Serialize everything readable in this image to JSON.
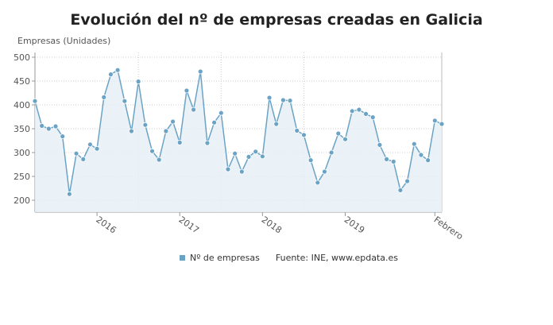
{
  "title": "Evolución del nº de empresas creadas en Galicia",
  "legend": {
    "series_label": "Nº de empresas",
    "source": "Fuente: INE, www.epdata.es"
  },
  "colors": {
    "line": "#6ba3c5",
    "point": "#6ba3c5",
    "fill": "#e6eff6"
  },
  "chart_data": {
    "type": "area",
    "ylabel": "Empresas (Unidades)",
    "ylim": [
      175,
      510
    ],
    "yticks": [
      200,
      250,
      300,
      350,
      400,
      450,
      500
    ],
    "x_tick_labels": [
      "2016",
      "2017",
      "2018",
      "2019",
      "Febrero"
    ],
    "x_start": "2015-04",
    "x_end": "2020-02",
    "series": [
      {
        "name": "Nº de empresas",
        "values": [
          408,
          356,
          350,
          355,
          334,
          213,
          298,
          286,
          317,
          308,
          416,
          464,
          473,
          408,
          345,
          449,
          358,
          303,
          285,
          345,
          365,
          321,
          430,
          390,
          470,
          320,
          363,
          383,
          265,
          298,
          260,
          291,
          302,
          292,
          415,
          360,
          410,
          409,
          346,
          337,
          284,
          237,
          260,
          300,
          340,
          328,
          387,
          390,
          381,
          374,
          316,
          286,
          281,
          221,
          240,
          318,
          295,
          284,
          367,
          360
        ]
      }
    ]
  }
}
